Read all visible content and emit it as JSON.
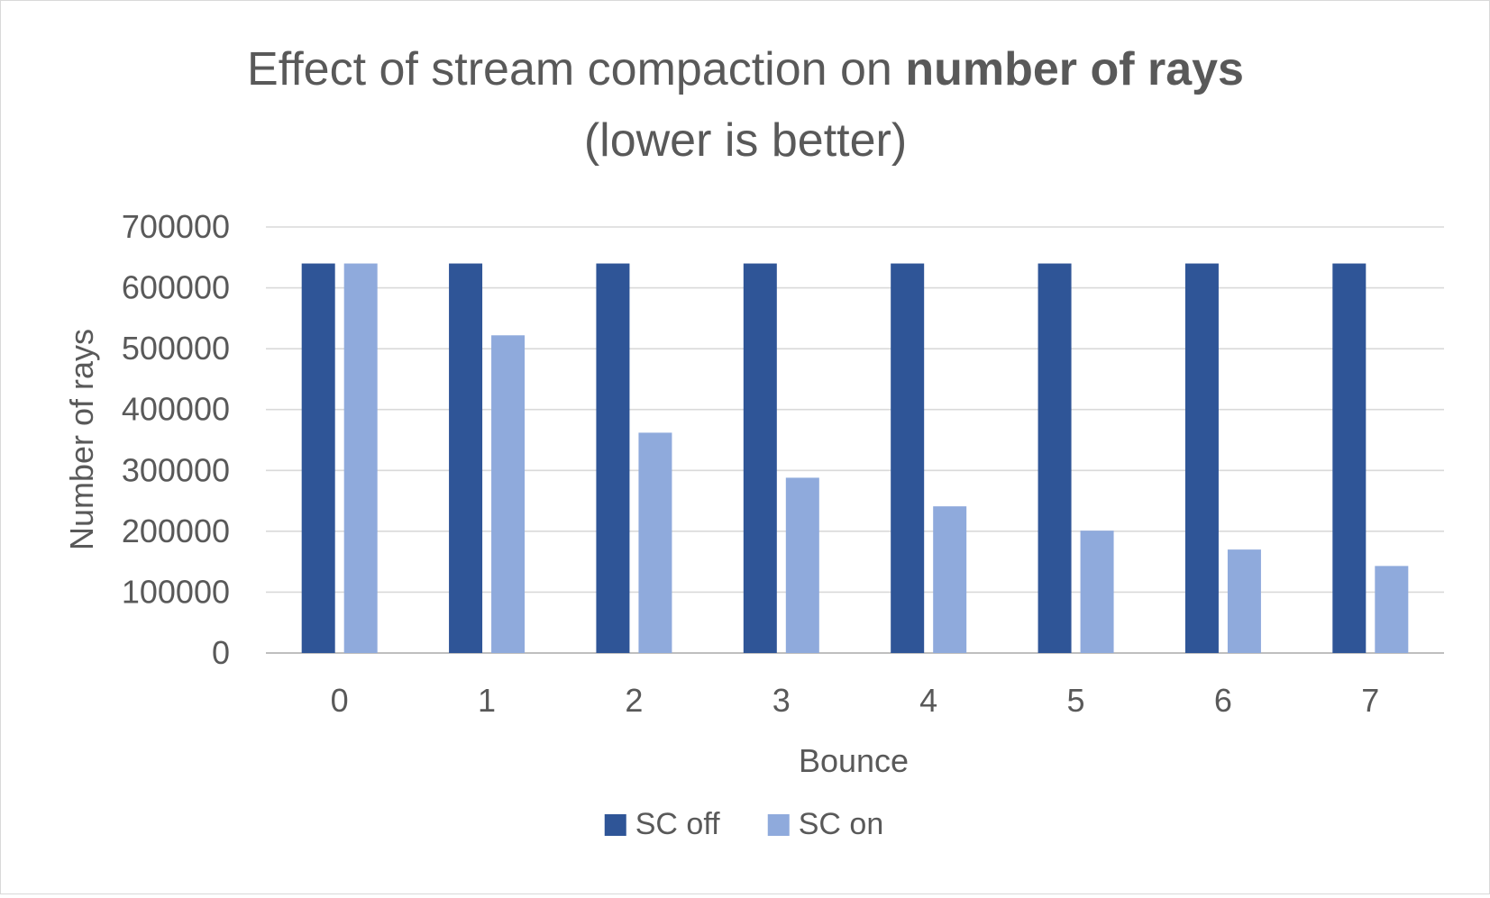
{
  "chart_data": {
    "type": "bar",
    "title": {
      "line1_prefix": "Effect of stream compaction on ",
      "line1_bold": "number of rays",
      "line2": "(lower is better)"
    },
    "xlabel": "Bounce",
    "ylabel": "Number of rays",
    "categories": [
      "0",
      "1",
      "2",
      "3",
      "4",
      "5",
      "6",
      "7"
    ],
    "ylim": [
      0,
      700000
    ],
    "yticks": [
      0,
      100000,
      200000,
      300000,
      400000,
      500000,
      600000,
      700000
    ],
    "ytick_labels": [
      "0",
      "100000",
      "200000",
      "300000",
      "400000",
      "500000",
      "600000",
      "700000"
    ],
    "grid": true,
    "legend_position": "bottom",
    "series": [
      {
        "name": "SC off",
        "color": "#2f5597",
        "values": [
          640000,
          640000,
          640000,
          640000,
          640000,
          640000,
          640000,
          640000
        ]
      },
      {
        "name": "SC on",
        "color": "#8faadc",
        "values": [
          640000,
          522000,
          362000,
          288000,
          241000,
          201000,
          170000,
          143000
        ]
      }
    ]
  }
}
